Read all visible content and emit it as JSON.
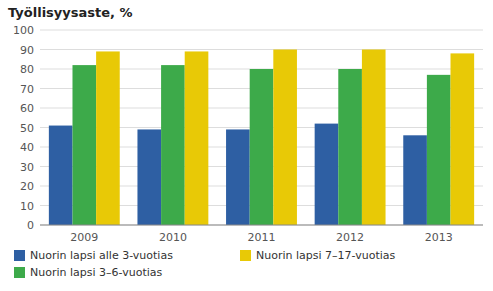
{
  "chart_data": {
    "type": "bar",
    "y_label": "Työllisyysaste, %",
    "categories": [
      "2009",
      "2010",
      "2011",
      "2012",
      "2013"
    ],
    "series": [
      {
        "name": "Nuorin lapsi alle 3-vuotias",
        "color": "#2E5FA3",
        "values": [
          51,
          49,
          49,
          52,
          46
        ]
      },
      {
        "name": "Nuorin lapsi 3–6-vuotias",
        "color": "#3DAA4A",
        "values": [
          82,
          82,
          80,
          80,
          77
        ]
      },
      {
        "name": "Nuorin lapsi 7–17-vuotias",
        "color": "#E8C906",
        "values": [
          89,
          89,
          90,
          90,
          88
        ]
      }
    ],
    "ylim": [
      0,
      100
    ],
    "yticks": [
      0,
      10,
      20,
      30,
      40,
      50,
      60,
      70,
      80,
      90,
      100
    ],
    "grid": true,
    "legend": "bottom"
  }
}
